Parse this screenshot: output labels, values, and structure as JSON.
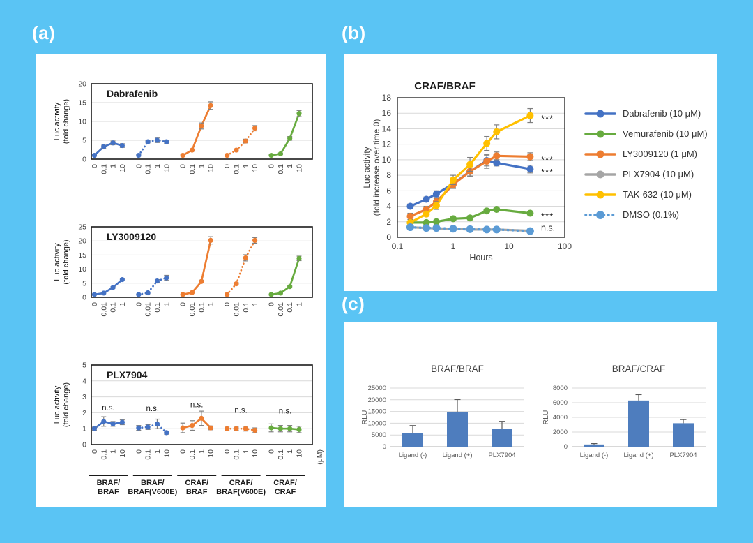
{
  "figure": {
    "background": "#5ac4f4",
    "panel_labels": {
      "a": "(a)",
      "b": "(b)",
      "c": "(c)"
    }
  },
  "colors": {
    "blue": "#4472c4",
    "orange": "#ed7d31",
    "green": "#67ab3f",
    "gray": "#a5a5a5",
    "yellow": "#ffc000",
    "lightblue": "#5b9bd5",
    "bar": "#4e7dbe",
    "error": "#7f7f7f",
    "grid": "#d9d9d9",
    "axis": "#1a1a1a",
    "tick": "#404040"
  },
  "chart_data": [
    {
      "id": "dabrafenib",
      "type": "line",
      "variant": "grouped-dose-response",
      "title": "Dabrafenib",
      "ylabel": "Luc activity\n(fold change)",
      "ylim": [
        0,
        20
      ],
      "yticks": [
        0,
        5,
        10,
        15,
        20
      ],
      "xtick_labels": [
        "0",
        "0.1",
        "1",
        "10"
      ],
      "grid": true,
      "groups": [
        {
          "name": "BRAF/BRAF",
          "color": "blue",
          "dashed": false,
          "values": [
            1,
            3.3,
            4.3,
            3.6
          ],
          "errors": [
            0.2,
            0.4,
            0.5,
            0.5
          ]
        },
        {
          "name": "BRAF/BRAF(V600E)",
          "color": "blue",
          "dashed": true,
          "values": [
            1,
            4.6,
            5.0,
            4.6
          ],
          "errors": [
            0.2,
            0.3,
            0.6,
            0.4
          ]
        },
        {
          "name": "CRAF/BRAF",
          "color": "orange",
          "dashed": false,
          "values": [
            1,
            2.4,
            8.8,
            14.2
          ],
          "errors": [
            0.2,
            0.3,
            0.8,
            1.0
          ]
        },
        {
          "name": "CRAF/BRAF(V600E)",
          "color": "orange",
          "dashed": true,
          "values": [
            1,
            2.4,
            4.8,
            8.2
          ],
          "errors": [
            0.2,
            0.3,
            0.5,
            0.7
          ]
        },
        {
          "name": "CRAF/CRAF",
          "color": "green",
          "dashed": false,
          "values": [
            1,
            1.4,
            5.5,
            12.1
          ],
          "errors": [
            0.15,
            0.2,
            0.5,
            0.8
          ]
        }
      ]
    },
    {
      "id": "ly3009120",
      "type": "line",
      "variant": "grouped-dose-response",
      "title": "LY3009120",
      "ylabel": "Luc activity\n(fold change)",
      "ylim": [
        0,
        25
      ],
      "yticks": [
        0,
        5,
        10,
        15,
        20,
        25
      ],
      "xtick_labels": [
        "0",
        "0.01",
        "0.1",
        "1"
      ],
      "grid": true,
      "groups": [
        {
          "name": "BRAF/BRAF",
          "color": "blue",
          "dashed": false,
          "values": [
            1,
            1.5,
            3.5,
            6.3
          ],
          "errors": [
            0.1,
            0.2,
            0.3,
            0.4
          ]
        },
        {
          "name": "BRAF/BRAF(V600E)",
          "color": "blue",
          "dashed": true,
          "values": [
            1,
            1.6,
            5.8,
            6.9
          ],
          "errors": [
            0.1,
            0.3,
            0.5,
            0.9
          ]
        },
        {
          "name": "CRAF/BRAF",
          "color": "orange",
          "dashed": false,
          "values": [
            1,
            1.7,
            5.6,
            20.2
          ],
          "errors": [
            0.1,
            0.2,
            0.5,
            1.3
          ]
        },
        {
          "name": "CRAF/BRAF(V600E)",
          "color": "orange",
          "dashed": true,
          "values": [
            1,
            4.8,
            14.0,
            20.2
          ],
          "errors": [
            0.1,
            0.4,
            1.1,
            1.0
          ]
        },
        {
          "name": "CRAF/CRAF",
          "color": "green",
          "dashed": false,
          "values": [
            1,
            1.5,
            3.8,
            13.8
          ],
          "errors": [
            0.1,
            0.2,
            0.4,
            0.8
          ]
        }
      ]
    },
    {
      "id": "plx7904",
      "type": "line",
      "variant": "grouped-dose-response",
      "title": "PLX7904",
      "ylabel": "Luc activity\n(fold change)",
      "ylim": [
        0,
        5
      ],
      "yticks": [
        0,
        1,
        2,
        3,
        4,
        5
      ],
      "xtick_labels": [
        "0",
        "0.1",
        "1",
        "10"
      ],
      "unit": "(μM)",
      "ns_label": "n.s.",
      "ns_y": [
        2.15,
        2.1,
        2.35,
        2.0,
        1.95
      ],
      "group_names": [
        [
          "BRAF/",
          "BRAF"
        ],
        [
          "BRAF/",
          "BRAF(V600E)"
        ],
        [
          "CRAF/",
          "BRAF"
        ],
        [
          "CRAF/",
          "BRAF(V600E)"
        ],
        [
          "CRAF/",
          "CRAF"
        ]
      ],
      "grid": true,
      "groups": [
        {
          "name": "BRAF/BRAF",
          "color": "blue",
          "dashed": false,
          "values": [
            1,
            1.45,
            1.3,
            1.4
          ],
          "errors": [
            0.1,
            0.3,
            0.15,
            0.15
          ]
        },
        {
          "name": "BRAF/BRAF(V600E)",
          "color": "blue",
          "dashed": true,
          "values": [
            1.05,
            1.1,
            1.3,
            0.75
          ],
          "errors": [
            0.15,
            0.15,
            0.3,
            0.1
          ]
        },
        {
          "name": "CRAF/BRAF",
          "color": "orange",
          "dashed": false,
          "values": [
            1.05,
            1.2,
            1.65,
            1.05
          ],
          "errors": [
            0.3,
            0.3,
            0.45,
            0.12
          ]
        },
        {
          "name": "CRAF/BRAF(V600E)",
          "color": "orange",
          "dashed": true,
          "values": [
            1,
            1,
            1,
            0.9
          ],
          "errors": [
            0.1,
            0.1,
            0.15,
            0.15
          ]
        },
        {
          "name": "CRAF/CRAF",
          "color": "green",
          "dashed": false,
          "values": [
            1.05,
            1.0,
            1.0,
            0.95
          ],
          "errors": [
            0.25,
            0.2,
            0.2,
            0.2
          ]
        }
      ]
    },
    {
      "id": "craf-braf-timecourse",
      "type": "line",
      "variant": "logx-timecourse",
      "title": "CRAF/BRAF",
      "xlabel": "Hours",
      "ylabel": "Luc activity\n(fold increase over time 0)",
      "xlim": [
        0.1,
        100
      ],
      "xticks": [
        0.1,
        1,
        10,
        100
      ],
      "xtick_labels": [
        "0.1",
        "1",
        "10",
        "100"
      ],
      "ylim": [
        0,
        18
      ],
      "yticks": [
        0,
        2,
        4,
        6,
        8,
        10,
        12,
        14,
        16,
        18
      ],
      "grid": true,
      "legend_position": "right",
      "x": [
        0.17,
        0.33,
        0.5,
        1,
        2,
        4,
        6,
        24
      ],
      "series": [
        {
          "name": "Dabrafenib (10 μM)",
          "color": "blue",
          "dashed": false,
          "values": [
            4.0,
            4.9,
            5.6,
            6.9,
            8.5,
            9.9,
            9.6,
            8.8
          ],
          "errors": [
            0.3,
            0.3,
            0.4,
            0.5,
            0.6,
            0.7,
            0.4,
            0.5
          ],
          "sig": "***",
          "sig_y": 8.8
        },
        {
          "name": "Vemurafenib (10 μM)",
          "color": "green",
          "dashed": false,
          "values": [
            1.9,
            1.9,
            2.0,
            2.4,
            2.5,
            3.4,
            3.6,
            3.1
          ],
          "errors": [
            0.1,
            0.1,
            0.3,
            0.2,
            0.2,
            0.2,
            0.2,
            0.2
          ],
          "sig": "***",
          "sig_y": 3.1
        },
        {
          "name": "LY3009120 (1 μM)",
          "color": "orange",
          "dashed": false,
          "values": [
            2.7,
            3.6,
            4.6,
            6.8,
            8.5,
            9.8,
            10.5,
            10.4
          ],
          "errors": [
            0.4,
            0.4,
            0.4,
            0.5,
            0.7,
            0.9,
            0.5,
            0.5
          ],
          "sig": "***",
          "sig_y": 10.4
        },
        {
          "name": "PLX7904 (10 μM)",
          "color": "gray",
          "dashed": false,
          "values": [
            1.3,
            1.2,
            1.15,
            1.1,
            1.0,
            1.0,
            1.0,
            0.85
          ],
          "errors": [
            0.1,
            0.1,
            0.1,
            0.1,
            0.1,
            0.1,
            0.1,
            0.1
          ],
          "sig": "n.s.",
          "sig_y": 1.2
        },
        {
          "name": "TAK-632 (10 μM)",
          "color": "yellow",
          "dashed": false,
          "values": [
            1.9,
            3.0,
            4.1,
            7.4,
            9.4,
            12.1,
            13.6,
            15.7
          ],
          "errors": [
            0.2,
            0.3,
            0.5,
            0.6,
            0.9,
            0.9,
            0.9,
            0.9
          ],
          "sig": "***",
          "sig_y": 15.7
        },
        {
          "name": "DMSO (0.1%)",
          "color": "lightblue",
          "dashed": true,
          "values": [
            1.3,
            1.2,
            1.2,
            1.1,
            1.05,
            1.0,
            1.0,
            0.8
          ],
          "errors": [
            0,
            0,
            0,
            0,
            0,
            0,
            0,
            0
          ],
          "sig": "",
          "sig_y": null
        }
      ]
    },
    {
      "id": "braf-braf-rlu",
      "type": "bar",
      "title": "BRAF/BRAF",
      "ylabel": "RLU",
      "categories": [
        "Ligand (-)",
        "Ligand (+)",
        "PLX7904"
      ],
      "values": [
        5800,
        14800,
        7600
      ],
      "errors": [
        3200,
        5300,
        3200
      ],
      "ylim": [
        0,
        25000
      ],
      "yticks": [
        0,
        5000,
        10000,
        15000,
        20000,
        25000
      ],
      "grid": true
    },
    {
      "id": "braf-craf-rlu",
      "type": "bar",
      "title": "BRAF/CRAF",
      "ylabel": "RLU",
      "categories": [
        "Ligand (-)",
        "Ligand (+)",
        "PLX7904"
      ],
      "values": [
        300,
        6300,
        3200
      ],
      "errors": [
        120,
        800,
        500
      ],
      "ylim": [
        0,
        8000
      ],
      "yticks": [
        0,
        2000,
        4000,
        6000,
        8000
      ],
      "grid": true
    }
  ]
}
